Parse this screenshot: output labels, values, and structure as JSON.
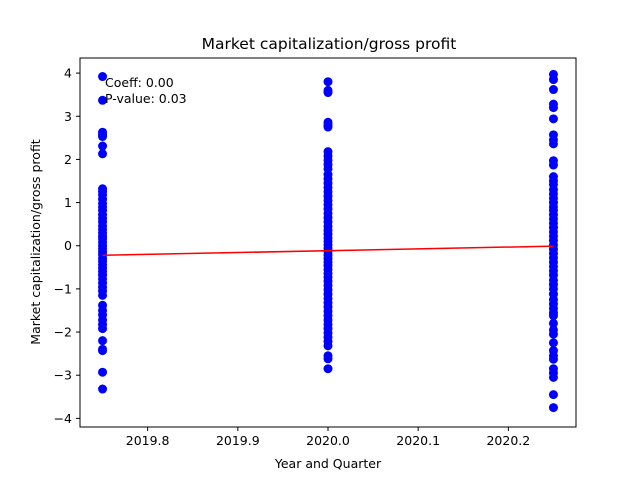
{
  "chart_data": {
    "type": "scatter",
    "title": "Market capitalization/gross profit",
    "xlabel": "Year and Quarter",
    "ylabel": "Market capitalization/gross profit",
    "xlim": [
      2019.725,
      2020.275
    ],
    "ylim": [
      -4.2,
      4.35
    ],
    "xticks": [
      2019.8,
      2019.9,
      2020.0,
      2020.1,
      2020.2
    ],
    "xtick_labels": [
      "2019.8",
      "2019.9",
      "2020.0",
      "2020.1",
      "2020.2"
    ],
    "yticks": [
      -4,
      -3,
      -2,
      -1,
      0,
      1,
      2,
      3,
      4
    ],
    "ytick_labels": [
      "−4",
      "−3",
      "−2",
      "−1",
      "0",
      "1",
      "2",
      "3",
      "4"
    ],
    "grid": false,
    "point_color": "#0000ff",
    "line_color": "#ff0000",
    "annotations": [
      "Coeff: 0.00",
      "P-value: 0.03"
    ],
    "points": [
      {
        "x": 2019.75,
        "y": [
          3.92,
          3.37,
          2.63,
          2.58,
          2.53,
          2.31,
          2.13,
          1.32,
          1.26,
          1.18,
          1.08,
          0.98,
          0.9,
          0.82,
          0.72,
          0.63,
          0.55,
          0.46,
          0.38,
          0.3,
          0.22,
          0.16,
          0.08,
          0.0,
          -0.07,
          -0.14,
          -0.21,
          -0.29,
          -0.36,
          -0.44,
          -0.52,
          -0.6,
          -0.68,
          -0.77,
          -0.86,
          -0.96,
          -1.05,
          -1.15,
          -1.38,
          -1.5,
          -1.6,
          -1.72,
          -1.82,
          -1.92,
          -2.2,
          -2.4,
          -2.43,
          -2.93,
          -3.32
        ]
      },
      {
        "x": 2020.0,
        "y": [
          3.8,
          3.6,
          3.55,
          2.86,
          2.8,
          2.75,
          2.18,
          2.08,
          1.98,
          1.88,
          1.78,
          1.65,
          1.55,
          1.45,
          1.35,
          1.25,
          1.15,
          1.05,
          0.95,
          0.85,
          0.75,
          0.65,
          0.55,
          0.45,
          0.36,
          0.27,
          0.18,
          0.1,
          0.02,
          -0.06,
          -0.14,
          -0.22,
          -0.3,
          -0.38,
          -0.46,
          -0.55,
          -0.64,
          -0.73,
          -0.82,
          -0.92,
          -1.02,
          -1.12,
          -1.22,
          -1.32,
          -1.42,
          -1.52,
          -1.62,
          -1.72,
          -1.82,
          -1.92,
          -2.02,
          -2.12,
          -2.22,
          -2.32,
          -2.55,
          -2.62,
          -2.85
        ]
      },
      {
        "x": 2020.25,
        "y": [
          3.97,
          3.85,
          3.62,
          3.28,
          3.2,
          2.94,
          2.57,
          2.45,
          2.36,
          1.97,
          1.87,
          1.6,
          1.5,
          1.42,
          1.3,
          1.2,
          1.1,
          1.0,
          0.9,
          0.82,
          0.72,
          0.62,
          0.52,
          0.42,
          0.32,
          0.22,
          0.12,
          0.02,
          -0.08,
          -0.18,
          -0.28,
          -0.38,
          -0.48,
          -0.58,
          -0.68,
          -0.8,
          -0.9,
          -1.0,
          -1.12,
          -1.25,
          -1.35,
          -1.45,
          -1.55,
          -1.62,
          -1.8,
          -1.95,
          -2.05,
          -2.25,
          -2.43,
          -2.55,
          -2.63,
          -2.85,
          -2.95,
          -3.05,
          -3.45,
          -3.75
        ]
      }
    ],
    "regression": {
      "x": [
        2019.75,
        2020.25
      ],
      "y": [
        -0.22,
        -0.01
      ]
    }
  }
}
